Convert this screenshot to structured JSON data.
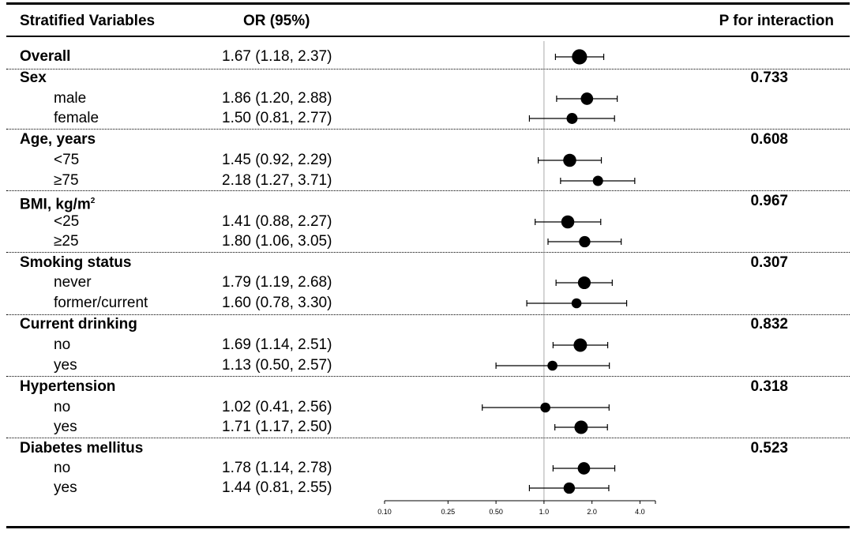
{
  "header": {
    "col1": "Stratified Variables",
    "col2": "OR (95%)",
    "col3": "P for interaction"
  },
  "chart_data": {
    "type": "forest",
    "xscale": "log",
    "xlim": [
      0.1,
      5.0
    ],
    "reference_line": 1.0,
    "xticks": [
      0.1,
      0.25,
      0.5,
      1.0,
      2.0,
      4.0
    ],
    "xtick_labels": [
      "0.10",
      "0.25",
      "0.50",
      "1.0",
      "2.0",
      "4.0"
    ],
    "rows": [
      {
        "label": "Overall",
        "level": "main",
        "or": 1.67,
        "lo": 1.18,
        "hi": 2.37,
        "text": "1.67 (1.18, 2.37)",
        "weight": 3
      },
      {
        "label": "Sex",
        "level": "main",
        "p": "0.733"
      },
      {
        "label": "male",
        "level": "sub",
        "or": 1.86,
        "lo": 1.2,
        "hi": 2.88,
        "text": "1.86 (1.20, 2.88)",
        "weight": 2.2
      },
      {
        "label": "female",
        "level": "sub",
        "or": 1.5,
        "lo": 0.81,
        "hi": 2.77,
        "text": "1.50 (0.81, 2.77)",
        "weight": 1.8
      },
      {
        "label": "Age, years",
        "level": "main",
        "p": "0.608"
      },
      {
        "label": "<75",
        "level": "sub",
        "or": 1.45,
        "lo": 0.92,
        "hi": 2.29,
        "text": "1.45 (0.92, 2.29)",
        "weight": 2.4
      },
      {
        "label": "≥75",
        "level": "sub",
        "or": 2.18,
        "lo": 1.27,
        "hi": 3.71,
        "text": "2.18 (1.27, 3.71)",
        "weight": 1.6
      },
      {
        "label": "BMI, kg/m",
        "sup": "2",
        "level": "main",
        "p": "0.967"
      },
      {
        "label": "<25",
        "level": "sub",
        "or": 1.41,
        "lo": 0.88,
        "hi": 2.27,
        "text": "1.41 (0.88, 2.27)",
        "weight": 2.4
      },
      {
        "label": "≥25",
        "level": "sub",
        "or": 1.8,
        "lo": 1.06,
        "hi": 3.05,
        "text": "1.80 (1.06, 3.05)",
        "weight": 1.9
      },
      {
        "label": "Smoking status",
        "level": "main",
        "p": "0.307"
      },
      {
        "label": "never",
        "level": "sub",
        "or": 1.79,
        "lo": 1.19,
        "hi": 2.68,
        "text": "1.79 (1.19, 2.68)",
        "weight": 2.3
      },
      {
        "label": "former/current",
        "level": "sub",
        "or": 1.6,
        "lo": 0.78,
        "hi": 3.3,
        "text": "1.60 (0.78, 3.30)",
        "weight": 1.5
      },
      {
        "label": "Current drinking",
        "level": "main",
        "p": "0.832"
      },
      {
        "label": "no",
        "level": "sub",
        "or": 1.69,
        "lo": 1.14,
        "hi": 2.51,
        "text": "1.69 (1.14, 2.51)",
        "weight": 2.5
      },
      {
        "label": "yes",
        "level": "sub",
        "or": 1.13,
        "lo": 0.5,
        "hi": 2.57,
        "text": "1.13 (0.50, 2.57)",
        "weight": 1.5
      },
      {
        "label": "Hypertension",
        "level": "main",
        "p": "0.318"
      },
      {
        "label": "no",
        "level": "sub",
        "or": 1.02,
        "lo": 0.41,
        "hi": 2.56,
        "text": "1.02 (0.41, 2.56)",
        "weight": 1.5
      },
      {
        "label": "yes",
        "level": "sub",
        "or": 1.71,
        "lo": 1.17,
        "hi": 2.5,
        "text": "1.71 (1.17, 2.50)",
        "weight": 2.5
      },
      {
        "label": "Diabetes mellitus",
        "level": "main",
        "p": "0.523"
      },
      {
        "label": "no",
        "level": "sub",
        "or": 1.78,
        "lo": 1.14,
        "hi": 2.78,
        "text": "1.78 (1.14, 2.78)",
        "weight": 2.2
      },
      {
        "label": "yes",
        "level": "sub",
        "or": 1.44,
        "lo": 0.81,
        "hi": 2.55,
        "text": "1.44 (0.81, 2.55)",
        "weight": 1.9
      }
    ]
  }
}
